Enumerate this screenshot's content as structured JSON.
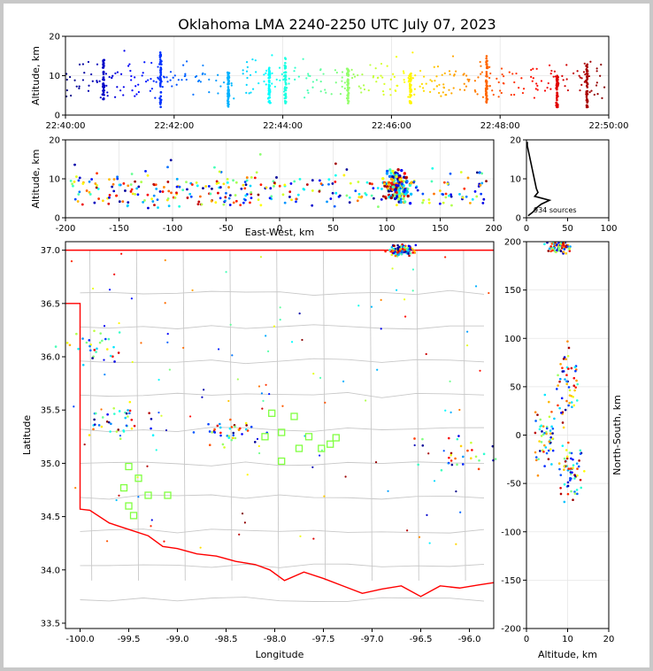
{
  "title": "Oklahoma LMA 2240-2250 UTC July 07, 2023",
  "chart_data": [
    {
      "id": "time-height",
      "type": "scatter",
      "xlabel": "",
      "ylabel": "Altitude, km",
      "x_ticks": [
        "22:40:00",
        "22:42:00",
        "22:44:00",
        "22:46:00",
        "22:48:00",
        "22:50:00"
      ],
      "xlim_minutes": [
        0,
        10
      ],
      "ylim": [
        0,
        20
      ],
      "y_ticks": [
        0,
        10,
        20
      ],
      "color_by": "time",
      "colormap": "jet",
      "grid": true,
      "description_of_points": "VHF sources; dense vertical columns near 22:41:45, 22:43:00, 22:43:50, 22:45:35, 22:46:35, 22:47:40, 22:48:40, 22:49:40",
      "columns": [
        {
          "t": 0.7,
          "ymin": 4,
          "ymax": 14
        },
        {
          "t": 1.75,
          "ymin": 2,
          "ymax": 16
        },
        {
          "t": 3.0,
          "ymin": 2,
          "ymax": 11
        },
        {
          "t": 3.75,
          "ymin": 3,
          "ymax": 12
        },
        {
          "t": 4.05,
          "ymin": 3,
          "ymax": 15
        },
        {
          "t": 5.2,
          "ymin": 3,
          "ymax": 12
        },
        {
          "t": 6.35,
          "ymin": 3,
          "ymax": 11
        },
        {
          "t": 7.75,
          "ymin": 3,
          "ymax": 15
        },
        {
          "t": 9.05,
          "ymin": 2,
          "ymax": 10
        },
        {
          "t": 9.6,
          "ymin": 2,
          "ymax": 13
        }
      ]
    },
    {
      "id": "ew-height",
      "type": "scatter",
      "xlabel": "East-West, km",
      "ylabel": "Altitude, km",
      "xlim": [
        -200,
        200
      ],
      "x_ticks": [
        -200,
        -150,
        -100,
        -50,
        0,
        50,
        100,
        150,
        200
      ],
      "ylim": [
        0,
        20
      ],
      "y_ticks": [
        0,
        10,
        20
      ],
      "grid": true,
      "clusters": [
        {
          "x": 110,
          "y": 8,
          "count": 150
        },
        {
          "x": -120,
          "y": 6,
          "count": 60
        },
        {
          "x": -30,
          "y": 5,
          "count": 40
        }
      ]
    },
    {
      "id": "altitude-histogram",
      "type": "line",
      "xlim": [
        0,
        100
      ],
      "x_ticks": [
        0,
        50,
        100
      ],
      "ylim": [
        0,
        20
      ],
      "y_ticks": [
        0,
        10,
        20
      ],
      "annotation": "934 sources",
      "profile": [
        {
          "alt": 0.5,
          "count": 2
        },
        {
          "alt": 1.5,
          "count": 8
        },
        {
          "alt": 2.5,
          "count": 12
        },
        {
          "alt": 3.5,
          "count": 18
        },
        {
          "alt": 4.5,
          "count": 28
        },
        {
          "alt": 5.5,
          "count": 10
        },
        {
          "alt": 6.5,
          "count": 14
        },
        {
          "alt": 7.5,
          "count": 12
        },
        {
          "alt": 8.5,
          "count": 11
        },
        {
          "alt": 9.5,
          "count": 10
        },
        {
          "alt": 10.5,
          "count": 9
        },
        {
          "alt": 11.5,
          "count": 8
        },
        {
          "alt": 12.5,
          "count": 7
        },
        {
          "alt": 13.5,
          "count": 6
        },
        {
          "alt": 14.5,
          "count": 5
        },
        {
          "alt": 15.5,
          "count": 4
        },
        {
          "alt": 16.5,
          "count": 3
        },
        {
          "alt": 17.5,
          "count": 2
        },
        {
          "alt": 18.5,
          "count": 1
        },
        {
          "alt": 19.5,
          "count": 1
        }
      ]
    },
    {
      "id": "plan-view",
      "type": "scatter",
      "xlabel": "Longitude",
      "ylabel": "Latitude",
      "xlim": [
        -100.15,
        -95.75
      ],
      "x_ticks": [
        -100.0,
        -99.5,
        -99.0,
        -98.5,
        -98.0,
        -97.5,
        -97.0,
        -96.5,
        -96.0
      ],
      "ylim": [
        33.45,
        37.08
      ],
      "y_ticks": [
        33.5,
        34.0,
        34.5,
        35.0,
        35.5,
        36.0,
        36.5,
        37.0
      ],
      "grid": true,
      "state_border_color": "#ff0000",
      "county_color": "#c8c8c8",
      "station_marker_color": "#80ff40",
      "stations": [
        [
          -98.03,
          35.47
        ],
        [
          -97.93,
          35.29
        ],
        [
          -97.8,
          35.44
        ],
        [
          -97.65,
          35.25
        ],
        [
          -97.43,
          35.18
        ],
        [
          -97.37,
          35.24
        ],
        [
          -97.52,
          35.14
        ],
        [
          -97.75,
          35.14
        ],
        [
          -97.93,
          35.02
        ],
        [
          -98.1,
          35.25
        ],
        [
          -99.5,
          34.97
        ],
        [
          -99.4,
          34.86
        ],
        [
          -99.55,
          34.77
        ],
        [
          -99.5,
          34.6
        ],
        [
          -99.3,
          34.7
        ],
        [
          -99.1,
          34.7
        ],
        [
          -99.45,
          34.51
        ]
      ],
      "clusters": [
        {
          "lon": -96.7,
          "lat": 37.0,
          "count": 120
        },
        {
          "lon": -99.6,
          "lat": 35.4,
          "count": 40
        },
        {
          "lon": -98.5,
          "lat": 35.3,
          "count": 40
        },
        {
          "lon": -96.1,
          "lat": 35.1,
          "count": 30
        },
        {
          "lon": -99.9,
          "lat": 36.1,
          "count": 30
        }
      ]
    },
    {
      "id": "height-ns",
      "type": "scatter",
      "xlabel": "Altitude, km",
      "ylabel": "North-South, km",
      "xlim": [
        0,
        20
      ],
      "x_ticks": [
        0,
        10,
        20
      ],
      "ylim": [
        -200,
        200
      ],
      "y_ticks": [
        -200,
        -150,
        -100,
        -50,
        0,
        50,
        100,
        150,
        200
      ],
      "grid": true,
      "clusters": [
        {
          "alt": 8,
          "ns": 195,
          "count": 80
        },
        {
          "alt": 5,
          "ns": 0,
          "count": 60
        },
        {
          "alt": 11,
          "ns": -40,
          "count": 60
        },
        {
          "alt": 10,
          "ns": 60,
          "count": 50
        }
      ]
    }
  ]
}
